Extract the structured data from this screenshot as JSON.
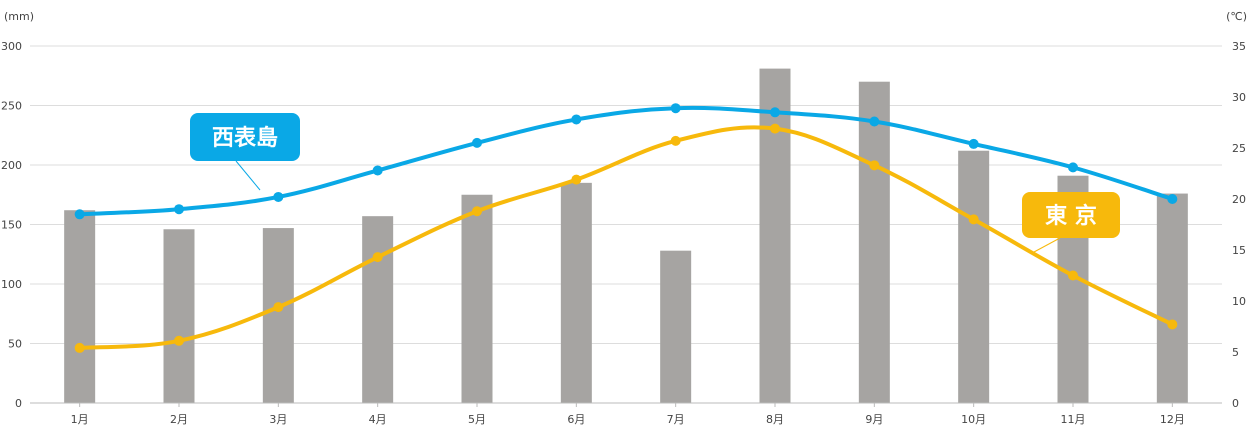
{
  "chart_data": {
    "type": "bar+line",
    "categories": [
      "1月",
      "2月",
      "3月",
      "4月",
      "5月",
      "6月",
      "7月",
      "8月",
      "9月",
      "10月",
      "11月",
      "12月"
    ],
    "bars": {
      "axis": "left",
      "color": "#a6a4a2",
      "values": [
        162,
        146,
        147,
        157,
        175,
        185,
        128,
        281,
        270,
        212,
        191,
        176
      ]
    },
    "series": [
      {
        "name": "西表島",
        "axis": "right",
        "color": "#0aa8e6",
        "values": [
          18.5,
          19.0,
          20.2,
          22.8,
          25.5,
          27.8,
          28.9,
          28.5,
          27.6,
          25.4,
          23.1,
          20.0
        ]
      },
      {
        "name": "東 京",
        "axis": "right",
        "color": "#f7b90c",
        "values": [
          5.4,
          6.1,
          9.4,
          14.3,
          18.8,
          21.9,
          25.7,
          26.9,
          23.3,
          18.0,
          12.5,
          7.7
        ]
      }
    ],
    "y_left": {
      "unit": "(mm)",
      "min": 0,
      "max": 300,
      "ticks": [
        0,
        50,
        100,
        150,
        200,
        250,
        300
      ]
    },
    "y_right": {
      "unit": "(℃)",
      "min": 0,
      "max": 35,
      "ticks": [
        0,
        5,
        10,
        15,
        20,
        25,
        30,
        35
      ]
    },
    "grid": true,
    "legend": "inline-labels"
  }
}
